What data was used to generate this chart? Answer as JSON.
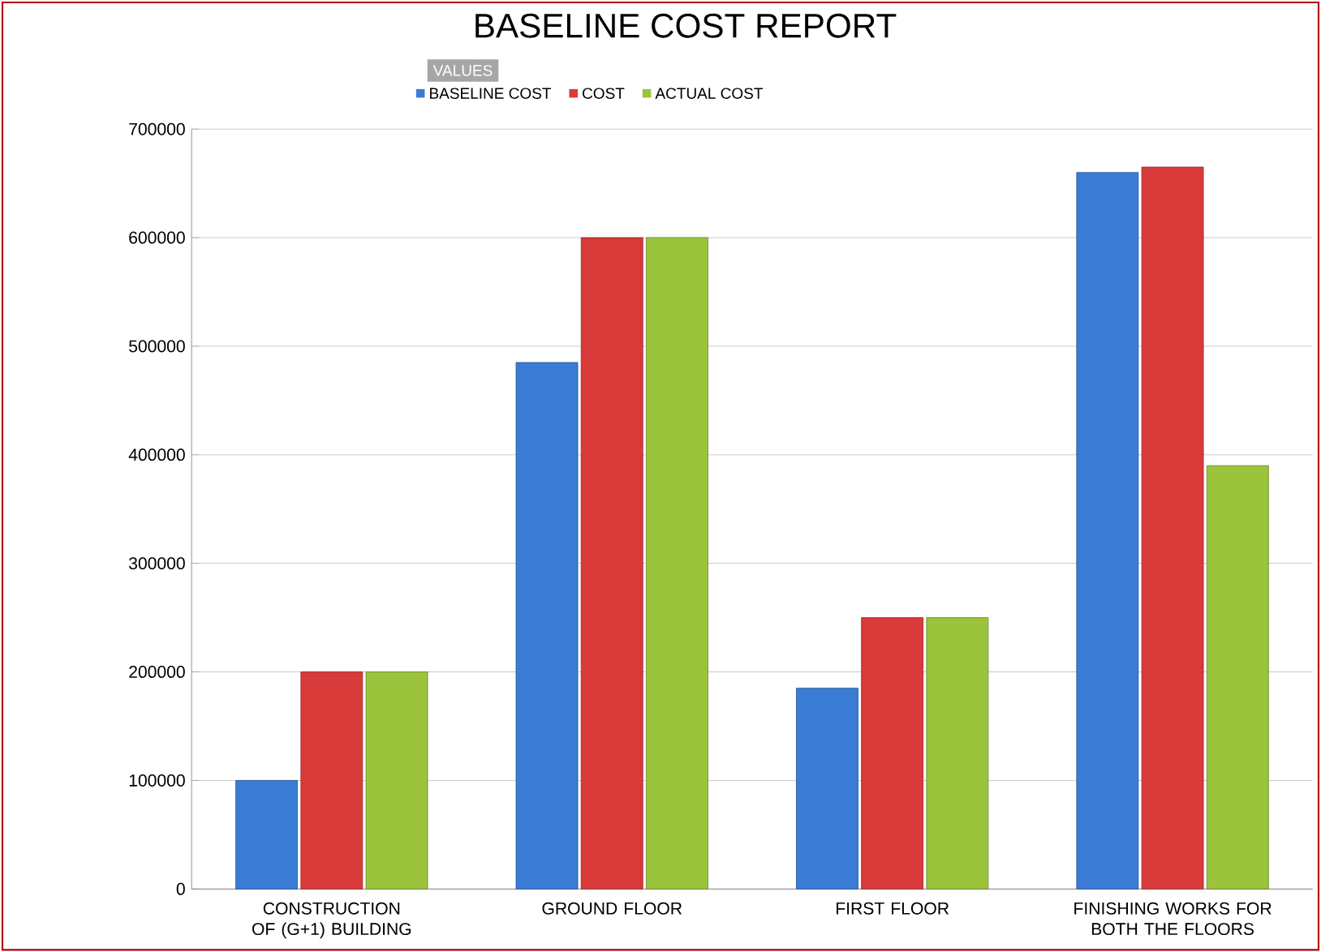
{
  "chart_data": {
    "type": "bar",
    "title": "BASELINE COST REPORT",
    "legend_title": "VALUES",
    "categories": [
      "CONSTRUCTION  OF (G+1) BUILDING",
      "GROUND FLOOR",
      "FIRST FLOOR",
      "FINISHING WORKS FOR BOTH THE FLOORS"
    ],
    "series": [
      {
        "name": "BASELINE COST",
        "color": "#3a7bd5",
        "values": [
          100000,
          485000,
          185000,
          660000
        ]
      },
      {
        "name": "COST",
        "color": "#d93a3a",
        "values": [
          200000,
          600000,
          250000,
          665000
        ]
      },
      {
        "name": "ACTUAL COST",
        "color": "#9bc43c",
        "values": [
          200000,
          600000,
          250000,
          390000
        ]
      }
    ],
    "ylim": [
      0,
      700000
    ],
    "yticks": [
      0,
      100000,
      200000,
      300000,
      400000,
      500000,
      600000,
      700000
    ],
    "grid": "y",
    "legend": "top"
  }
}
